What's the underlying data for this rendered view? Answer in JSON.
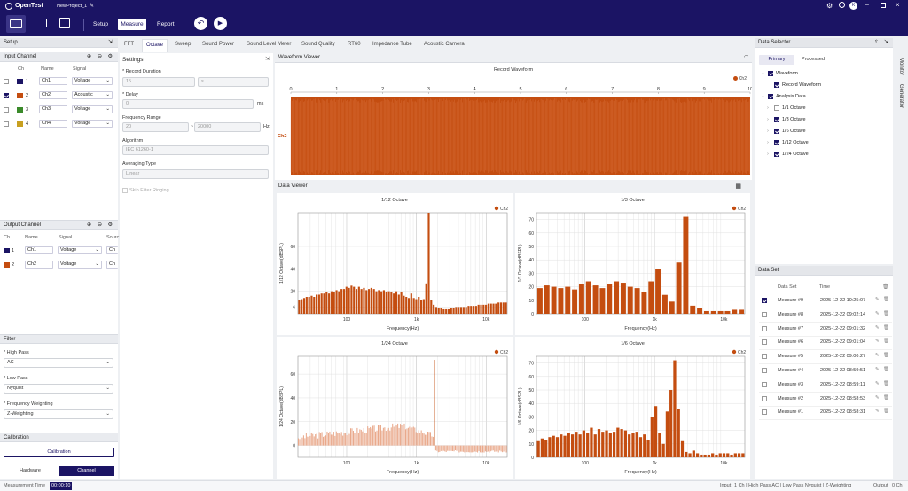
{
  "app": {
    "name": "OpenTest",
    "project": "NewProject_1",
    "win_icons": [
      "gear-icon",
      "bell-icon",
      "avatar",
      "minimize-icon",
      "maximize-icon",
      "close-icon"
    ]
  },
  "toolbar": {
    "setup": "Setup",
    "measure": "Measure",
    "report": "Report"
  },
  "input_channel": {
    "title": "Input Channel",
    "headers": [
      "Ch",
      "Name",
      "Signal"
    ],
    "rows": [
      {
        "num": "1",
        "name": "Ch1",
        "signal": "Voltage",
        "color": "#1b1464",
        "checked": false
      },
      {
        "num": "2",
        "name": "Ch2",
        "signal": "Acoustic",
        "color": "#c44d10",
        "checked": true
      },
      {
        "num": "3",
        "name": "Ch3",
        "signal": "Voltage",
        "color": "#3a8a2a",
        "checked": false
      },
      {
        "num": "4",
        "name": "Ch4",
        "signal": "Voltage",
        "color": "#c8a020",
        "checked": false
      }
    ]
  },
  "output_channel": {
    "title": "Output Channel",
    "headers": [
      "Ch",
      "Name",
      "Signal",
      "Sourc"
    ],
    "rows": [
      {
        "num": "1",
        "name": "Ch1",
        "signal": "Voltage",
        "color": "#1b1464",
        "src": "Ch"
      },
      {
        "num": "2",
        "name": "Ch2",
        "signal": "Voltage",
        "color": "#c44d10",
        "src": "Ch"
      }
    ]
  },
  "filter": {
    "title": "Filter",
    "high_pass_label": "* High Pass",
    "high_pass": "AC",
    "low_pass_label": "* Low Pass",
    "low_pass": "Nyquist",
    "weight_label": "* Frequency Weighting",
    "weight": "Z-Weighting"
  },
  "calibration": {
    "title": "Calibration",
    "button": "Calibration"
  },
  "bottom_tabs": {
    "hardware": "Hardware",
    "channel": "Channel"
  },
  "tabs": [
    "FFT",
    "Octave",
    "Sweep",
    "Sound Power",
    "Sound Level Meter",
    "Sound Quality",
    "RT60",
    "Impedance Tube",
    "Acoustic Camera"
  ],
  "settings": {
    "title": "Settings",
    "record_duration": "* Record Duration",
    "rd1": "15",
    "rd2": "s",
    "delay": "* Delay",
    "delay_val": "0",
    "delay_unit": "ms",
    "freq_range": "Frequency Range",
    "fr_from": "20",
    "fr_to": "20000",
    "fr_sep": "~",
    "fr_unit": "Hz",
    "algorithm": "Algorithm",
    "algorithm_val": "IEC 61260-1",
    "averaging": "Averaging Type",
    "averaging_val": "Linear",
    "skip": "Skip Filter Ringing"
  },
  "waveform": {
    "title": "Waveform Viewer",
    "chart_title": "Record Waveform",
    "channel": "Ch2",
    "legend": "Ch2"
  },
  "data_viewer": {
    "title": "Data Viewer"
  },
  "status": {
    "label": "Measurement Time",
    "time": "00:00:10",
    "input": "Input",
    "input_detail": "1 Ch | High Pass  AC | Low Pass  Nyquist |  Z-Weighting",
    "output": "Output",
    "output_detail": "0 Ch"
  },
  "data_selector": {
    "title": "Data Selector",
    "tab_primary": "Primary",
    "tab_processed": "Processed",
    "tree": [
      {
        "label": "Waveform",
        "level": 0,
        "checked": true
      },
      {
        "label": "Record Waveform",
        "level": 1,
        "checked": true
      },
      {
        "label": "Analysis Data",
        "level": 0,
        "checked": true
      },
      {
        "label": "1/1 Octave",
        "level": 1,
        "checked": false
      },
      {
        "label": "1/3 Octave",
        "level": 1,
        "checked": true
      },
      {
        "label": "1/6 Octave",
        "level": 1,
        "checked": true
      },
      {
        "label": "1/12 Octave",
        "level": 1,
        "checked": true
      },
      {
        "label": "1/24 Octave",
        "level": 1,
        "checked": true
      }
    ]
  },
  "data_set": {
    "title": "Data Set",
    "col_name": "Data Set",
    "col_time": "Time",
    "rows": [
      {
        "name": "Measure #9",
        "time": "2025-12-22 10:25:07",
        "checked": true
      },
      {
        "name": "Measure #8",
        "time": "2025-12-22 09:02:14",
        "checked": false
      },
      {
        "name": "Measure #7",
        "time": "2025-12-22 09:01:32",
        "checked": false
      },
      {
        "name": "Measure #6",
        "time": "2025-12-22 09:01:04",
        "checked": false
      },
      {
        "name": "Measure #5",
        "time": "2025-12-22 09:00:27",
        "checked": false
      },
      {
        "name": "Measure #4",
        "time": "2025-12-22 08:59:51",
        "checked": false
      },
      {
        "name": "Measure #3",
        "time": "2025-12-22 08:59:11",
        "checked": false
      },
      {
        "name": "Measure #2",
        "time": "2025-12-22 08:58:53",
        "checked": false
      },
      {
        "name": "Measure #1",
        "time": "2025-12-22 08:58:31",
        "checked": false
      }
    ]
  },
  "side_tabs": [
    "Monitor",
    "Generator"
  ],
  "colors": {
    "accent": "#1b1464",
    "series": "#c44d10"
  },
  "chart_data": [
    {
      "type": "line",
      "title": "Record Waveform",
      "x": [
        0,
        1,
        2,
        3,
        4,
        5,
        6,
        7,
        8,
        9,
        10
      ],
      "xlim": [
        0,
        10
      ],
      "series": [
        {
          "name": "Ch2"
        }
      ]
    },
    {
      "type": "bar",
      "title": "1/12 Octave",
      "xlabel": "Frequency(Hz)",
      "ylabel": "1/12 Octave(dBSPL)",
      "xscale": "log",
      "xticks": [
        "100",
        "1k",
        "10k"
      ],
      "yticks": [
        "6",
        "20",
        "40",
        "60"
      ],
      "series": [
        {
          "name": "Ch2"
        }
      ],
      "values": [
        12,
        13,
        14,
        15,
        15,
        16,
        15,
        17,
        17,
        18,
        18,
        19,
        18,
        20,
        19,
        21,
        20,
        22,
        22,
        24,
        23,
        25,
        24,
        22,
        24,
        22,
        23,
        21,
        22,
        23,
        22,
        20,
        21,
        20,
        21,
        19,
        20,
        19,
        18,
        20,
        17,
        19,
        16,
        15,
        14,
        18,
        14,
        13,
        15,
        12,
        13,
        27,
        90,
        12,
        8,
        6,
        5,
        5,
        4,
        4,
        4,
        5,
        5,
        6,
        6,
        6,
        6,
        6,
        7,
        7,
        7,
        7,
        8,
        8,
        8,
        8,
        9,
        9,
        9,
        9,
        10,
        10,
        10,
        10
      ]
    },
    {
      "type": "bar",
      "title": "1/3 Octave",
      "xlabel": "Frequency(Hz)",
      "ylabel": "1/3 Octave(dBSPL)",
      "xscale": "log",
      "xticks": [
        "100",
        "1k",
        "10k"
      ],
      "yticks": [
        "0",
        "10",
        "20",
        "30",
        "40",
        "50",
        "60",
        "70"
      ],
      "series": [
        {
          "name": "Ch2"
        }
      ],
      "values": [
        19,
        21,
        20,
        19,
        20,
        18,
        22,
        24,
        21,
        19,
        22,
        24,
        23,
        20,
        19,
        16,
        24,
        33,
        14,
        9,
        38,
        72,
        6,
        4,
        2,
        2,
        2,
        2,
        3,
        3
      ]
    },
    {
      "type": "bar",
      "title": "1/24 Octave",
      "xlabel": "Frequency(Hz)",
      "ylabel": "1/24 Octave(dBSPL)",
      "xscale": "log",
      "xticks": [
        "100",
        "1k",
        "10k"
      ],
      "yticks": [
        "0",
        "20",
        "40",
        "60"
      ],
      "series": [
        {
          "name": "Ch2"
        }
      ]
    },
    {
      "type": "bar",
      "title": "1/6 Octave",
      "xlabel": "Frequency(Hz)",
      "ylabel": "1/6 Octave(dBSPL)",
      "xscale": "log",
      "xticks": [
        "100",
        "1k",
        "10k"
      ],
      "yticks": [
        "0",
        "10",
        "20",
        "30",
        "40",
        "50",
        "60",
        "70"
      ],
      "series": [
        {
          "name": "Ch2"
        }
      ],
      "values": [
        12,
        14,
        13,
        15,
        16,
        15,
        17,
        16,
        18,
        17,
        19,
        17,
        20,
        18,
        22,
        17,
        21,
        19,
        20,
        18,
        19,
        22,
        21,
        20,
        17,
        18,
        19,
        15,
        17,
        13,
        30,
        38,
        18,
        10,
        34,
        50,
        72,
        36,
        12,
        4,
        3,
        5,
        3,
        2,
        2,
        2,
        3,
        2,
        3,
        3,
        3,
        2,
        3,
        3,
        3
      ]
    }
  ]
}
